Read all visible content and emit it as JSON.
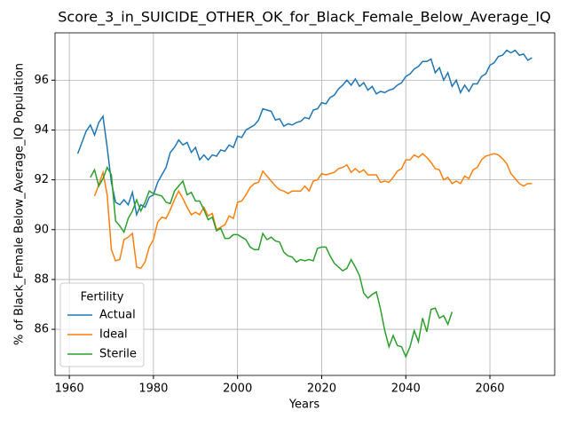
{
  "chart_data": {
    "type": "line",
    "title": "Score_3_in_SUICIDE_OTHER_OK_for_Black_Female_Below_Average_IQ",
    "xlabel": "Years",
    "ylabel": "% of Black_Female Below_Average_IQ Population",
    "legend_title": "Fertility",
    "legend_loc": "lower left",
    "grid": true,
    "xlim": [
      1956.6,
      2075.4
    ],
    "ylim": [
      84.15,
      97.9
    ],
    "xticks": [
      1960,
      1980,
      2000,
      2020,
      2040,
      2060
    ],
    "yticks": [
      86,
      88,
      90,
      92,
      94,
      96
    ],
    "x": [
      1962,
      1963,
      1964,
      1965,
      1966,
      1967,
      1968,
      1969,
      1970,
      1971,
      1972,
      1973,
      1974,
      1975,
      1976,
      1977,
      1978,
      1979,
      1980,
      1981,
      1982,
      1983,
      1984,
      1985,
      1986,
      1987,
      1988,
      1989,
      1990,
      1991,
      1992,
      1993,
      1994,
      1995,
      1996,
      1997,
      1998,
      1999,
      2000,
      2001,
      2002,
      2003,
      2004,
      2005,
      2006,
      2007,
      2008,
      2009,
      2010,
      2011,
      2012,
      2013,
      2014,
      2015,
      2016,
      2017,
      2018,
      2019,
      2020,
      2021,
      2022,
      2023,
      2024,
      2025,
      2026,
      2027,
      2028,
      2029,
      2030,
      2031,
      2032,
      2033,
      2034,
      2035,
      2036,
      2037,
      2038,
      2039,
      2040,
      2041,
      2042,
      2043,
      2044,
      2045,
      2046,
      2047,
      2048,
      2049,
      2050,
      2051,
      2052,
      2053,
      2054,
      2055,
      2056,
      2057,
      2058,
      2059,
      2060,
      2061,
      2062,
      2063,
      2064,
      2065,
      2066,
      2067,
      2068,
      2069,
      2070
    ],
    "series": [
      {
        "name": "Actual",
        "color": "#1f77b4",
        "values": [
          93.05,
          93.5,
          93.95,
          94.2,
          93.8,
          94.3,
          94.55,
          93.3,
          91.9,
          91.1,
          91.0,
          91.2,
          91.0,
          91.5,
          90.6,
          91.0,
          90.9,
          91.3,
          91.4,
          91.9,
          92.2,
          92.5,
          93.1,
          93.3,
          93.6,
          93.4,
          93.5,
          93.1,
          93.3,
          92.8,
          93.0,
          92.8,
          93.0,
          92.95,
          93.2,
          93.15,
          93.4,
          93.3,
          93.75,
          93.7,
          94.0,
          94.1,
          94.2,
          94.4,
          94.85,
          94.8,
          94.75,
          94.4,
          94.45,
          94.15,
          94.25,
          94.2,
          94.3,
          94.35,
          94.5,
          94.45,
          94.8,
          94.85,
          95.1,
          95.05,
          95.3,
          95.4,
          95.65,
          95.8,
          96.0,
          95.8,
          96.05,
          95.75,
          95.9,
          95.6,
          95.75,
          95.45,
          95.55,
          95.5,
          95.6,
          95.65,
          95.8,
          95.9,
          96.15,
          96.25,
          96.45,
          96.55,
          96.75,
          96.75,
          96.85,
          96.3,
          96.5,
          96.0,
          96.3,
          95.75,
          96.0,
          95.5,
          95.8,
          95.55,
          95.85,
          95.85,
          96.15,
          96.25,
          96.6,
          96.7,
          96.95,
          97.0,
          97.2,
          97.1,
          97.2,
          97.0,
          97.05,
          96.8,
          96.9
        ]
      },
      {
        "name": "Ideal",
        "color": "#ff7f0e",
        "values": [
          null,
          null,
          null,
          null,
          91.35,
          91.8,
          92.3,
          91.4,
          89.2,
          88.75,
          88.8,
          89.6,
          89.7,
          89.85,
          88.5,
          88.45,
          88.7,
          89.3,
          89.6,
          90.3,
          90.5,
          90.45,
          90.8,
          91.2,
          91.55,
          91.25,
          90.9,
          90.6,
          90.7,
          90.6,
          90.9,
          90.55,
          90.65,
          90.0,
          90.1,
          90.2,
          90.55,
          90.45,
          91.1,
          91.15,
          91.4,
          91.7,
          91.85,
          91.9,
          92.35,
          92.15,
          91.95,
          91.75,
          91.6,
          91.55,
          91.45,
          91.55,
          91.55,
          91.55,
          91.75,
          91.55,
          91.95,
          92.0,
          92.25,
          92.2,
          92.25,
          92.3,
          92.45,
          92.5,
          92.6,
          92.3,
          92.45,
          92.3,
          92.4,
          92.2,
          92.2,
          92.2,
          91.9,
          91.95,
          91.9,
          92.1,
          92.35,
          92.45,
          92.8,
          92.8,
          93.0,
          92.9,
          93.05,
          92.9,
          92.7,
          92.45,
          92.4,
          92.0,
          92.1,
          91.85,
          91.95,
          91.85,
          92.15,
          92.05,
          92.4,
          92.5,
          92.8,
          92.95,
          93.0,
          93.05,
          93.0,
          92.85,
          92.65,
          92.25,
          92.05,
          91.85,
          91.75,
          91.85,
          91.85
        ]
      },
      {
        "name": "Sterile",
        "color": "#2ca02c",
        "values": [
          null,
          null,
          null,
          92.1,
          92.4,
          91.75,
          92.05,
          92.5,
          92.2,
          90.35,
          90.15,
          89.9,
          90.45,
          90.75,
          91.2,
          90.75,
          91.1,
          91.55,
          91.45,
          91.4,
          91.35,
          91.1,
          91.05,
          91.55,
          91.75,
          91.95,
          91.4,
          91.5,
          91.15,
          91.15,
          90.8,
          90.4,
          90.5,
          89.95,
          90.05,
          89.65,
          89.65,
          89.8,
          89.8,
          89.7,
          89.6,
          89.3,
          89.2,
          89.2,
          89.85,
          89.6,
          89.7,
          89.55,
          89.5,
          89.1,
          88.95,
          88.9,
          88.7,
          88.8,
          88.75,
          88.8,
          88.75,
          89.25,
          89.3,
          89.3,
          88.95,
          88.65,
          88.5,
          88.35,
          88.45,
          88.8,
          88.5,
          88.15,
          87.45,
          87.25,
          87.4,
          87.5,
          86.8,
          85.95,
          85.3,
          85.75,
          85.35,
          85.3,
          84.9,
          85.3,
          85.95,
          85.5,
          86.45,
          85.9,
          86.8,
          86.85,
          86.45,
          86.55,
          86.2,
          86.7,
          null,
          null,
          null,
          null,
          null,
          null,
          null,
          null,
          null,
          null,
          null,
          null,
          null,
          null,
          null,
          null,
          null,
          null,
          null
        ]
      }
    ]
  }
}
